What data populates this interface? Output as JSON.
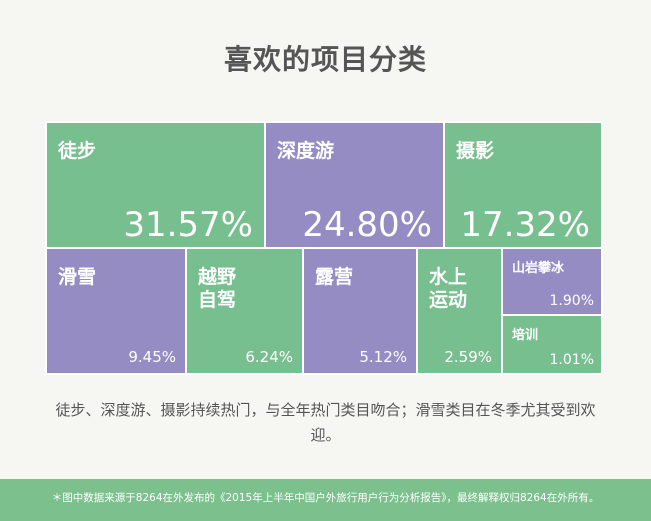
{
  "title": "喜欢的项目分类",
  "caption": "徒步、深度游、摄影持续热门，与全年热门类目吻合；滑雪类目在冬季尤其受到欢迎。",
  "footer": "＊图中数据来源于8264在外发布的《2015年上半年中国户外旅行用户行为分析报告》，最终解释权归8264在外所有。",
  "colors": {
    "green": "#77bf8e",
    "purple": "#958cc4",
    "text": "#ffffff"
  },
  "chart_data": {
    "type": "treemap",
    "unit": "%",
    "items": [
      {
        "label": "徒步",
        "value": 31.57,
        "value_label": "31.57%",
        "color": "green"
      },
      {
        "label": "深度游",
        "value": 24.8,
        "value_label": "24.80%",
        "color": "purple"
      },
      {
        "label": "摄影",
        "value": 17.32,
        "value_label": "17.32%",
        "color": "green"
      },
      {
        "label": "滑雪",
        "value": 9.45,
        "value_label": "9.45%",
        "color": "purple"
      },
      {
        "label": "越野自驾",
        "label_lines": [
          "越野",
          "自驾"
        ],
        "value": 6.24,
        "value_label": "6.24%",
        "color": "green"
      },
      {
        "label": "露营",
        "value": 5.12,
        "value_label": "5.12%",
        "color": "purple"
      },
      {
        "label": "水上运动",
        "label_lines": [
          "水上",
          "运动"
        ],
        "value": 2.59,
        "value_label": "2.59%",
        "color": "green"
      },
      {
        "label": "山岩攀冰",
        "value": 1.9,
        "value_label": "1.90%",
        "color": "purple"
      },
      {
        "label": "培训",
        "value": 1.01,
        "value_label": "1.01%",
        "color": "green"
      }
    ]
  }
}
